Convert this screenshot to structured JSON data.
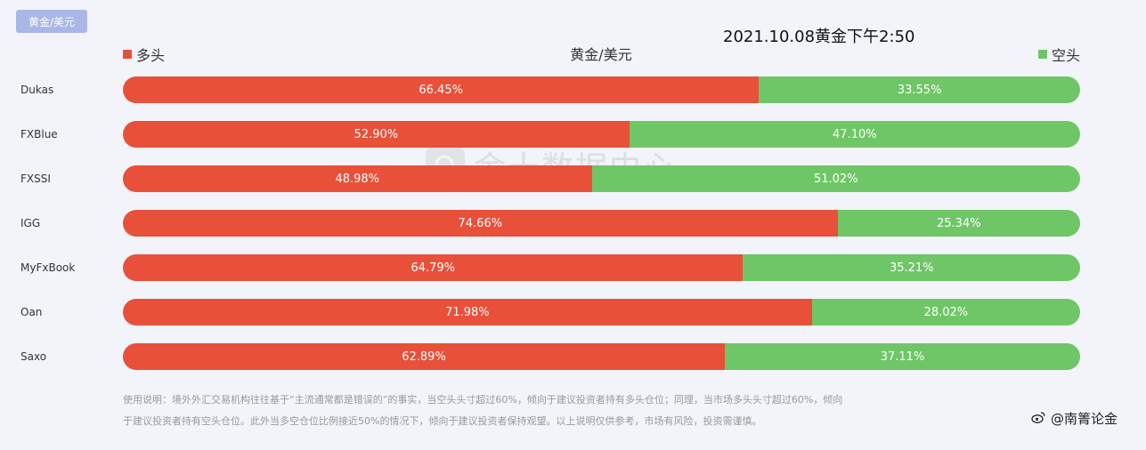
{
  "header": {
    "tab_label": "黄金/美元",
    "timestamp": "2021.10.08黄金下午2:50",
    "chart_title": "黄金/美元"
  },
  "legend": {
    "long_label": "多头",
    "short_label": "空头",
    "long_color": "#e8503a",
    "short_color": "#6fc667"
  },
  "watermark": {
    "text": "金十数据中心",
    "icon": "jin10-logo-icon"
  },
  "chart_data": {
    "type": "bar",
    "orientation": "horizontal",
    "stacked": true,
    "normalized_to": 100,
    "title": "黄金/美元",
    "categories": [
      "Dukas",
      "FXBlue",
      "FXSSI",
      "IGG",
      "MyFxBook",
      "Oan",
      "Saxo"
    ],
    "series": [
      {
        "name": "多头",
        "color": "#e8503a",
        "values": [
          66.45,
          52.9,
          48.98,
          74.66,
          64.79,
          71.98,
          62.89
        ],
        "labels": [
          "66.45%",
          "52.90%",
          "48.98%",
          "74.66%",
          "64.79%",
          "71.98%",
          "62.89%"
        ]
      },
      {
        "name": "空头",
        "color": "#6fc667",
        "values": [
          33.55,
          47.1,
          51.02,
          25.34,
          35.21,
          28.02,
          37.11
        ],
        "labels": [
          "33.55%",
          "47.10%",
          "51.02%",
          "25.34%",
          "35.21%",
          "28.02%",
          "37.11%"
        ]
      }
    ],
    "xlim": [
      0,
      100
    ],
    "legend_position": "top"
  },
  "note": {
    "line1": "使用说明：境外外汇交易机构往往基于“主流通常都是错误的”的事实，当空头头寸超过60%，倾向于建议投资者持有多头仓位；同理，当市场多头头寸超过60%，倾向",
    "line2": "于建议投资者持有空头仓位。此外当多空仓位比例接近50%的情况下，倾向于建议投资者保持观望。以上说明仅供参考，市场有风险，投资需谨慎。"
  },
  "credit": {
    "text": "@南箐论金",
    "icon": "weibo-icon"
  }
}
